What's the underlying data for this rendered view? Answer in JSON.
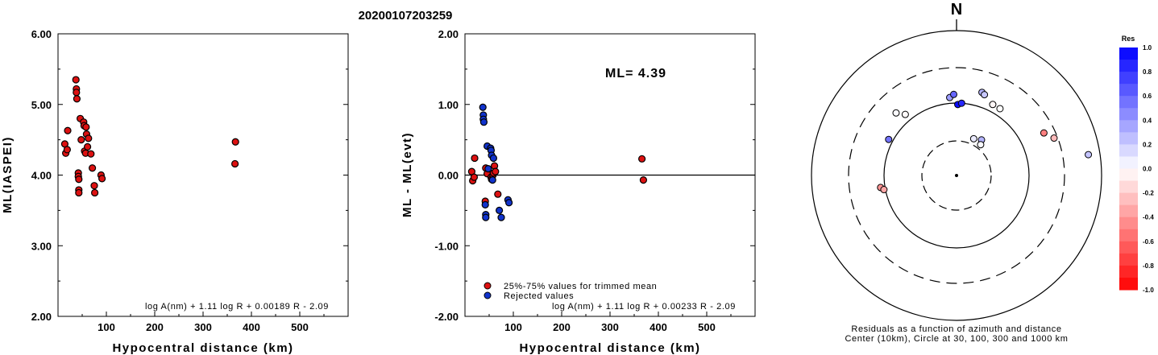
{
  "title": "20200107203259",
  "chart_data": [
    {
      "type": "scatter",
      "xlabel": "Hypocentral distance (km)",
      "ylabel": "ML(IASPEI)",
      "xlim": [
        0,
        600
      ],
      "ylim": [
        2.0,
        6.0
      ],
      "xticks": [
        "100",
        "200",
        "300",
        "400",
        "500"
      ],
      "yticks": [
        "2.00",
        "3.00",
        "4.00",
        "5.00",
        "6.00"
      ],
      "formula": "log A(nm) + 1.11 log R + 0.00189 R - 2.09",
      "series": [
        {
          "color": "#dd1111",
          "points": [
            [
              14,
              4.44
            ],
            [
              16,
              4.31
            ],
            [
              19,
              4.36
            ],
            [
              20,
              4.63
            ],
            [
              37,
              5.35
            ],
            [
              38,
              5.22
            ],
            [
              38,
              5.17
            ],
            [
              39,
              5.08
            ],
            [
              42,
              4.03
            ],
            [
              42,
              3.98
            ],
            [
              43,
              3.94
            ],
            [
              43,
              3.79
            ],
            [
              43,
              3.75
            ],
            [
              46,
              4.8
            ],
            [
              48,
              4.5
            ],
            [
              53,
              4.75
            ],
            [
              54,
              4.7
            ],
            [
              55,
              4.34
            ],
            [
              57,
              4.31
            ],
            [
              58,
              4.68
            ],
            [
              59,
              4.58
            ],
            [
              61,
              4.4
            ],
            [
              63,
              4.52
            ],
            [
              68,
              4.3
            ],
            [
              71,
              4.1
            ],
            [
              75,
              3.85
            ],
            [
              76,
              3.75
            ],
            [
              89,
              4.0
            ],
            [
              91,
              3.95
            ],
            [
              367,
              4.47
            ],
            [
              366,
              4.16
            ]
          ]
        }
      ]
    },
    {
      "type": "scatter",
      "xlabel": "Hypocentral distance (km)",
      "ylabel": "ML - ML(evt)",
      "xlim": [
        0,
        600
      ],
      "ylim": [
        -2.0,
        2.0
      ],
      "xticks": [
        "100",
        "200",
        "300",
        "400",
        "500"
      ],
      "yticks": [
        "-2.00",
        "-1.00",
        "0.00",
        "1.00",
        "2.00"
      ],
      "ml_label": "ML= 4.39",
      "formula": "log A(nm) + 1.11 log R + 0.00233 R - 2.09",
      "legend": [
        "25%-75% values for trimmed mean",
        "Rejected values"
      ],
      "series": [
        {
          "name": "25%-75% values for trimmed mean",
          "color": "#dd1111",
          "points": [
            [
              14,
              0.05
            ],
            [
              16,
              -0.08
            ],
            [
              19,
              -0.03
            ],
            [
              20,
              0.24
            ],
            [
              42,
              -0.37
            ],
            [
              43,
              0.1
            ],
            [
              46,
              0.02
            ],
            [
              54,
              -0.03
            ],
            [
              55,
              -0.06
            ],
            [
              58,
              0.0
            ],
            [
              59,
              0.03
            ],
            [
              61,
              0.13
            ],
            [
              63,
              0.05
            ],
            [
              68,
              -0.27
            ],
            [
              366,
              0.23
            ],
            [
              369,
              -0.07
            ]
          ]
        },
        {
          "name": "Rejected values",
          "color": "#1133cc",
          "points": [
            [
              37,
              0.96
            ],
            [
              38,
              0.85
            ],
            [
              38,
              0.79
            ],
            [
              39,
              0.75
            ],
            [
              42,
              -0.42
            ],
            [
              43,
              -0.56
            ],
            [
              43,
              -0.6
            ],
            [
              46,
              0.41
            ],
            [
              48,
              0.09
            ],
            [
              53,
              0.38
            ],
            [
              54,
              0.35
            ],
            [
              55,
              0.28
            ],
            [
              57,
              -0.07
            ],
            [
              59,
              0.24
            ],
            [
              71,
              -0.5
            ],
            [
              75,
              -0.6
            ],
            [
              89,
              -0.35
            ],
            [
              91,
              -0.39
            ]
          ]
        }
      ]
    },
    {
      "type": "scatter",
      "subtype": "polar",
      "north_label": "N",
      "caption": [
        "Residuals as a function of azimuth and distance",
        "Center (10km), Circle at 30, 100, 300 and 1000 km"
      ],
      "colorbar": {
        "title": "Res",
        "ticks": [
          "1.0",
          "0.8",
          "0.6",
          "0.4",
          "0.2",
          "0.0",
          "-0.2",
          "-0.4",
          "-0.6",
          "-0.8",
          "-1.0"
        ]
      },
      "stations": [
        {
          "az": 320,
          "r": 0.55,
          "res": -0.02
        },
        {
          "az": 316,
          "r": 0.6,
          "res": 0.02
        },
        {
          "az": 298,
          "r": 0.53,
          "res": 0.55
        },
        {
          "az": 261,
          "r": 0.53,
          "res": -0.42
        },
        {
          "az": 259,
          "r": 0.51,
          "res": -0.35
        },
        {
          "az": 355,
          "r": 0.54,
          "res": 0.38
        },
        {
          "az": 358,
          "r": 0.56,
          "res": 0.6
        },
        {
          "az": 1,
          "r": 0.49,
          "res": 0.96
        },
        {
          "az": 4,
          "r": 0.5,
          "res": 0.85
        },
        {
          "az": 17,
          "r": 0.6,
          "res": 0.3
        },
        {
          "az": 19,
          "r": 0.59,
          "res": 0.22
        },
        {
          "az": 27,
          "r": 0.55,
          "res": -0.03
        },
        {
          "az": 33,
          "r": 0.55,
          "res": 0.0
        },
        {
          "az": 35,
          "r": 0.3,
          "res": 0.3
        },
        {
          "az": 25,
          "r": 0.28,
          "res": 0.08
        },
        {
          "az": 38,
          "r": 0.27,
          "res": 0.02
        },
        {
          "az": 64,
          "r": 0.67,
          "res": -0.5
        },
        {
          "az": 69,
          "r": 0.72,
          "res": -0.27
        },
        {
          "az": 81,
          "r": 0.92,
          "res": 0.23
        }
      ]
    }
  ]
}
